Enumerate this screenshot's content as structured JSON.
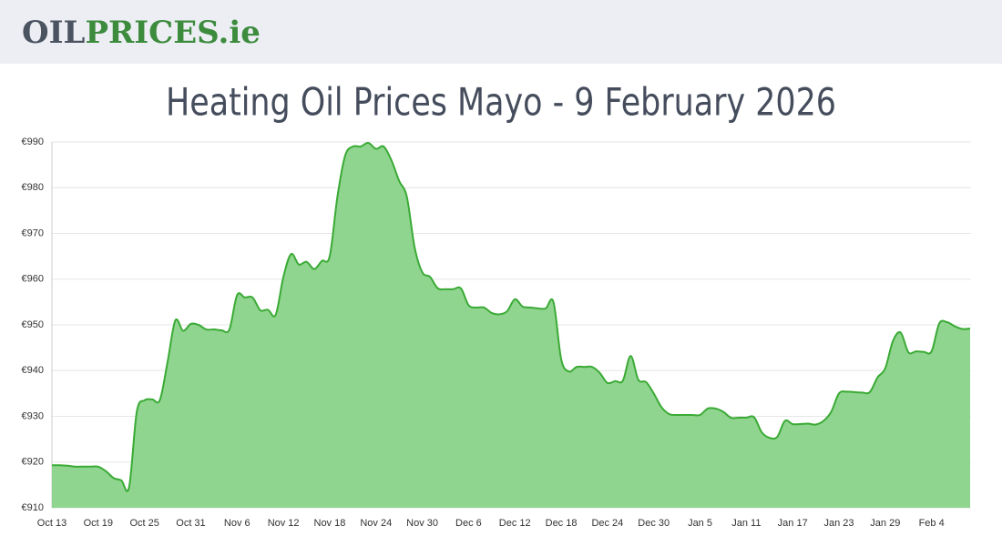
{
  "header": {
    "logo_dark": "OIL",
    "logo_green": "PRICES.ie"
  },
  "chart_data": {
    "type": "area",
    "title": "Heating Oil Prices Mayo - 9 February 2026",
    "categories": [
      "Oct 13",
      null,
      null,
      null,
      null,
      null,
      "Oct 19",
      null,
      null,
      null,
      null,
      null,
      "Oct 25",
      null,
      null,
      null,
      null,
      null,
      "Oct 31",
      null,
      null,
      null,
      null,
      null,
      "Nov 6",
      null,
      null,
      null,
      null,
      null,
      "Nov 12",
      null,
      null,
      null,
      null,
      null,
      "Nov 18",
      null,
      null,
      null,
      null,
      null,
      "Nov 24",
      null,
      null,
      null,
      null,
      null,
      "Nov 30",
      null,
      null,
      null,
      null,
      null,
      "Dec 6",
      null,
      null,
      null,
      null,
      null,
      "Dec 12",
      null,
      null,
      null,
      null,
      null,
      "Dec 18",
      null,
      null,
      null,
      null,
      null,
      "Dec 24",
      null,
      null,
      null,
      null,
      null,
      "Dec 30",
      null,
      null,
      null,
      null,
      null,
      "Jan 5",
      null,
      null,
      null,
      null,
      null,
      "Jan 11",
      null,
      null,
      null,
      null,
      null,
      "Jan 17",
      null,
      null,
      null,
      null,
      null,
      "Jan 23",
      null,
      null,
      null,
      null,
      null,
      "Jan 29",
      null,
      null,
      null,
      null,
      null,
      "Feb 4",
      null,
      null,
      null,
      null,
      null
    ],
    "values": [
      919.3,
      919.3,
      919.2,
      919,
      919,
      919,
      919,
      918,
      916.5,
      916,
      914.5,
      931,
      933.5,
      933.7,
      933.6,
      942,
      951,
      948.7,
      950.2,
      950,
      949,
      949,
      948.8,
      949,
      956.5,
      956,
      956,
      953.2,
      953.3,
      952.2,
      960.5,
      965.5,
      963.2,
      963.8,
      962.2,
      964,
      965,
      978,
      987,
      989,
      989,
      989.8,
      988.5,
      989,
      986,
      981.5,
      978,
      967,
      961.5,
      960.5,
      958,
      957.8,
      957.8,
      958,
      954.3,
      953.8,
      953.8,
      952.6,
      952.3,
      953,
      955.6,
      954,
      953.8,
      953.6,
      953.6,
      955,
      942.5,
      939.8,
      940.8,
      940.8,
      940.8,
      939.5,
      937.3,
      937.7,
      937.8,
      943.2,
      938,
      937.5,
      935,
      932,
      930.5,
      930.3,
      930.3,
      930.3,
      930.3,
      931.7,
      931.7,
      931,
      929.7,
      929.7,
      929.7,
      929.8,
      926.5,
      925.3,
      925.5,
      929,
      928.3,
      928.3,
      928.4,
      928.2,
      929,
      931,
      935,
      935.4,
      935.3,
      935.2,
      935.3,
      938.5,
      940.5,
      946.5,
      948.3,
      944,
      944.2,
      944.1,
      944.2,
      950.3,
      950.6,
      949.7,
      949.1,
      949.2
    ],
    "color": "#3aaa35",
    "fill": "#90d58f",
    "ylim": [
      910,
      990
    ],
    "yticks": [
      {
        "value": 910,
        "label": "€910"
      },
      {
        "value": 920,
        "label": "€920"
      },
      {
        "value": 930,
        "label": "€930"
      },
      {
        "value": 940,
        "label": "€940"
      },
      {
        "value": 950,
        "label": "€950"
      },
      {
        "value": 960,
        "label": "€960"
      },
      {
        "value": 970,
        "label": "€970"
      },
      {
        "value": 980,
        "label": "€980"
      },
      {
        "value": 990,
        "label": "€990"
      }
    ],
    "grid": true
  }
}
